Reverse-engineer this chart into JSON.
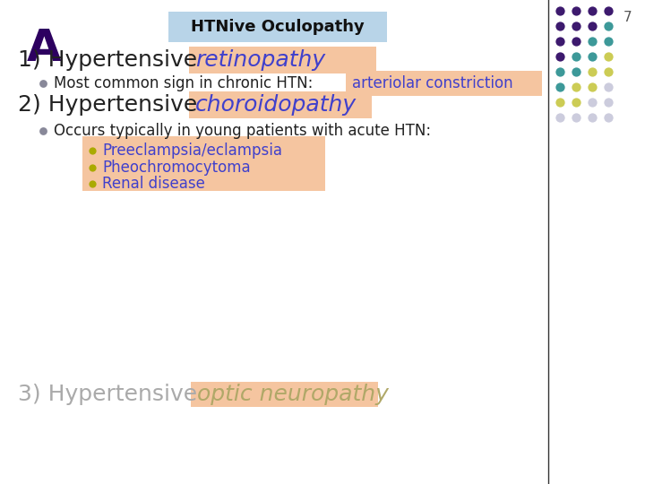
{
  "title_letter": "A",
  "title_box_text": "HTNive Oculopathy",
  "title_box_color": "#b8d4e8",
  "background_color": "#ffffff",
  "highlight_color": "#f5c5a0",
  "page_number": "7",
  "section1_plain": "1) Hypertensive ",
  "section1_italic": "retinopathy",
  "section1_italic_color": "#4040cc",
  "bullet1_plain": "Most common sign in chronic HTN: ",
  "bullet1_highlight": "arteriolar constriction",
  "bullet1_highlight_color": "#4040cc",
  "section2_plain": "2) Hypertensive ",
  "section2_italic": "choroidopathy",
  "section2_italic_color": "#4040cc",
  "bullet2_plain": "Occurs typically in young patients with acute HTN:",
  "sub_bullets": [
    "Preeclampsia/eclampsia",
    "Pheochromocytoma",
    "Renal disease"
  ],
  "sub_bullet_color": "#4040cc",
  "sub_bullet_dot_color": "#aaaa00",
  "section3_plain": "3) Hypertensive ",
  "section3_italic": "optic neuropathy",
  "section3_italic_color": "#b0a868",
  "section3_plain_color": "#aaaaaa",
  "dot_grid": {
    "rows": 8,
    "cols": 4,
    "colors": [
      [
        "#3d1a6e",
        "#3d1a6e",
        "#3d1a6e",
        "#3d1a6e"
      ],
      [
        "#3d1a6e",
        "#3d1a6e",
        "#3d1a6e",
        "#3d9999"
      ],
      [
        "#3d1a6e",
        "#3d1a6e",
        "#3d9999",
        "#3d9999"
      ],
      [
        "#3d1a6e",
        "#3d9999",
        "#3d9999",
        "#cccc55"
      ],
      [
        "#3d9999",
        "#3d9999",
        "#cccc55",
        "#cccc55"
      ],
      [
        "#3d9999",
        "#cccc55",
        "#cccc55",
        "#ccccdd"
      ],
      [
        "#cccc55",
        "#cccc55",
        "#ccccdd",
        "#ccccdd"
      ],
      [
        "#ccccdd",
        "#ccccdd",
        "#ccccdd",
        "#ccccdd"
      ]
    ]
  },
  "figsize": [
    7.2,
    5.4
  ],
  "dpi": 100
}
